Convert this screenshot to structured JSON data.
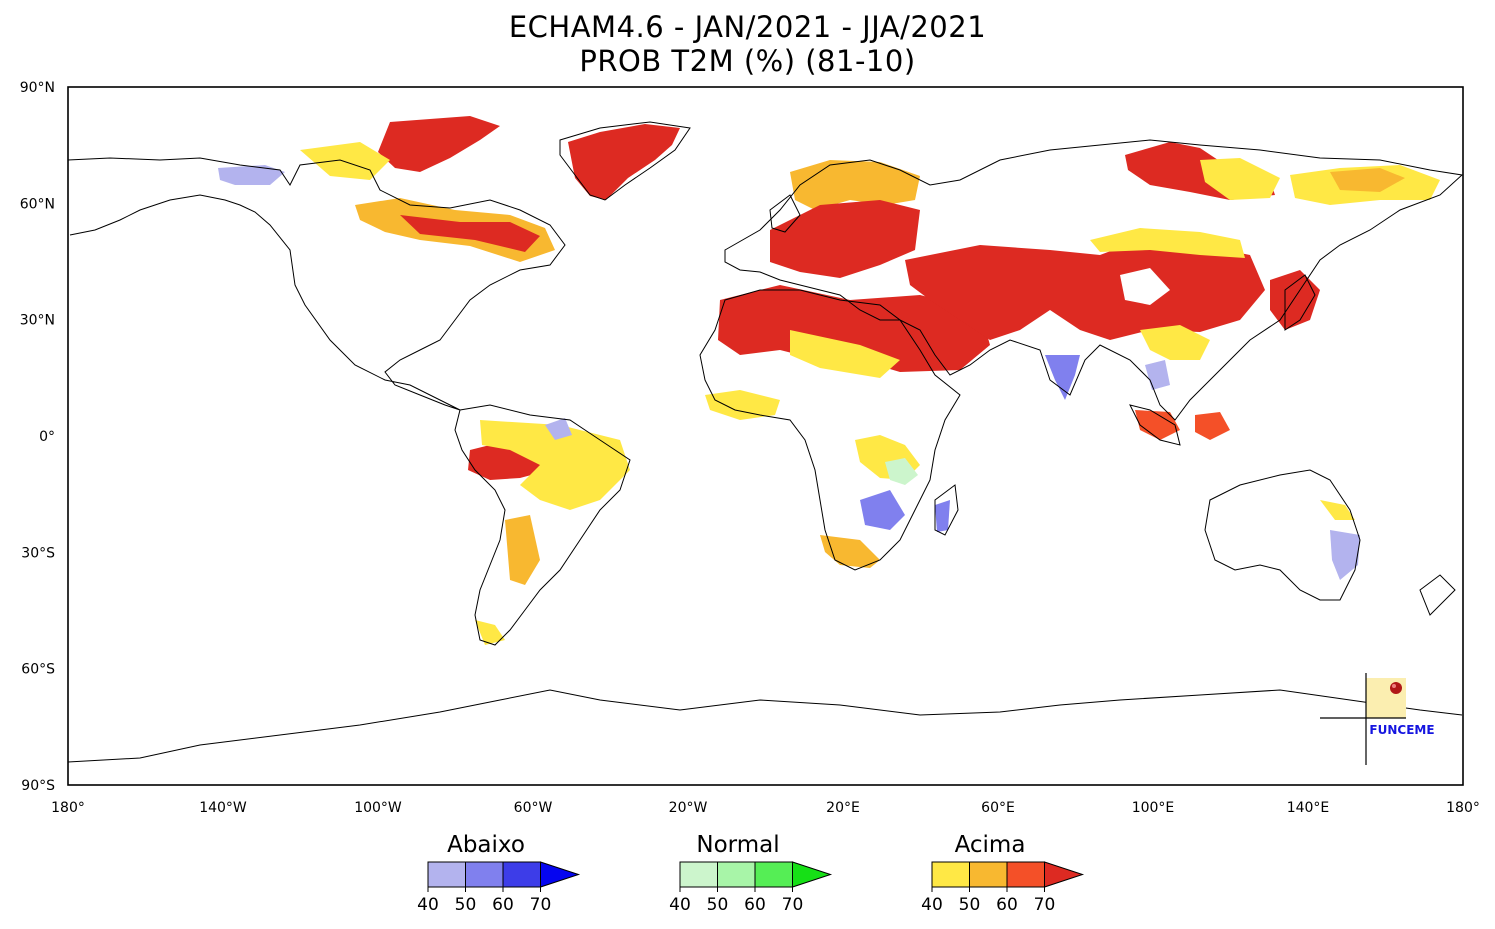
{
  "title": {
    "line1": "ECHAM4.6 - JAN/2021 - JJA/2021",
    "line2": "PROB T2M (%) (81-10)"
  },
  "axes": {
    "lat_labels": [
      "90°N",
      "60°N",
      "30°N",
      "0°",
      "30°S",
      "60°S",
      "90°S"
    ],
    "lat_values": [
      90,
      60,
      30,
      0,
      -30,
      -60,
      -90
    ],
    "lon_labels": [
      "180°",
      "140°W",
      "100°W",
      "60°W",
      "20°W",
      "20°E",
      "60°E",
      "100°E",
      "140°E",
      "180°"
    ],
    "lon_values": [
      -180,
      -140,
      -100,
      -60,
      -20,
      20,
      60,
      100,
      140,
      180
    ]
  },
  "legend": [
    {
      "title": "Abaixo",
      "ticks": [
        "40",
        "50",
        "60",
        "70"
      ],
      "colors": [
        "#b3b3ee",
        "#8080ee",
        "#3d3de8",
        "#0505f0"
      ]
    },
    {
      "title": "Normal",
      "ticks": [
        "40",
        "50",
        "60",
        "70"
      ],
      "colors": [
        "#ccf5cc",
        "#a8f5a8",
        "#55ee55",
        "#16e016"
      ]
    },
    {
      "title": "Acima",
      "ticks": [
        "40",
        "50",
        "60",
        "70"
      ],
      "colors": [
        "#ffe845",
        "#f8b830",
        "#f45028",
        "#dd2a22"
      ]
    }
  ],
  "logo": {
    "text": "FUNCEME"
  },
  "colors": {
    "coast": "#000000",
    "acima_40": "#ffe845",
    "acima_50": "#f8b830",
    "acima_60": "#f45028",
    "acima_70": "#dd2a22",
    "abaixo_40": "#b3b3ee",
    "abaixo_50": "#8080ee",
    "normal_40": "#ccf5cc"
  }
}
